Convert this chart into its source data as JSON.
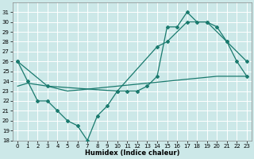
{
  "xlabel": "Humidex (Indice chaleur)",
  "ylabel": "",
  "bg_color": "#cce8e8",
  "grid_color": "#ffffff",
  "line_color": "#1a7a6e",
  "xlim": [
    -0.5,
    23.5
  ],
  "ylim": [
    18,
    32
  ],
  "yticks": [
    18,
    19,
    20,
    21,
    22,
    23,
    24,
    25,
    26,
    27,
    28,
    29,
    30,
    31
  ],
  "xticks": [
    0,
    1,
    2,
    3,
    4,
    5,
    6,
    7,
    8,
    9,
    10,
    11,
    12,
    13,
    14,
    15,
    16,
    17,
    18,
    19,
    20,
    21,
    22,
    23
  ],
  "series1_x": [
    0,
    1,
    2,
    3,
    4,
    5,
    6,
    7,
    8,
    9,
    10,
    11,
    12,
    13,
    14,
    15,
    16,
    17,
    18,
    19,
    20,
    21,
    22,
    23
  ],
  "series1_y": [
    26,
    24,
    22,
    22,
    21,
    20,
    19.5,
    18,
    20.5,
    21.5,
    23,
    23,
    23,
    23.5,
    24.5,
    29.5,
    29.5,
    31,
    30,
    30,
    29.5,
    28,
    26,
    24.5
  ],
  "series2_x": [
    0,
    3,
    10,
    14,
    15,
    17,
    19,
    21,
    23
  ],
  "series2_y": [
    26,
    23.5,
    23,
    27.5,
    28,
    30,
    30,
    28,
    26
  ],
  "series3_x": [
    0,
    1,
    3,
    5,
    10,
    15,
    20,
    23
  ],
  "series3_y": [
    23.5,
    23.8,
    23.5,
    23,
    23.5,
    24,
    24.5,
    24.5
  ]
}
